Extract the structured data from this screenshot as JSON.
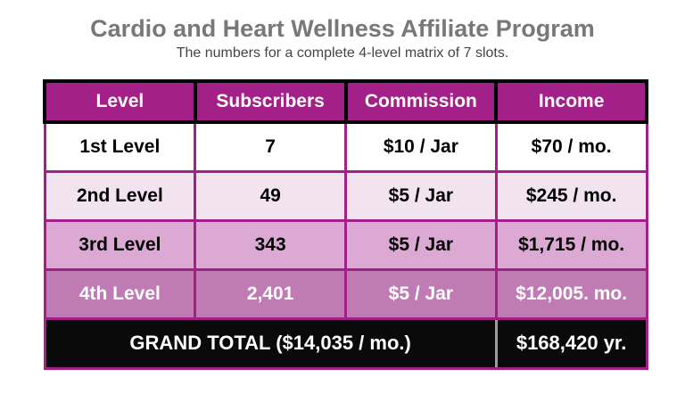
{
  "slide": {
    "title": "Cardio and Heart Wellness Affiliate Program",
    "subtitle": "The numbers for a complete 4-level matrix of 7 slots."
  },
  "table": {
    "headers": [
      "Level",
      "Subscribers",
      "Commission",
      "Income"
    ],
    "rows": [
      {
        "level": "1st Level",
        "subscribers": "7",
        "commission": "$10 / Jar",
        "income": "$70 / mo."
      },
      {
        "level": "2nd Level",
        "subscribers": "49",
        "commission": "$5 / Jar",
        "income": "$245 / mo."
      },
      {
        "level": "3rd Level",
        "subscribers": "343",
        "commission": "$5 / Jar",
        "income": "$1,715 / mo."
      },
      {
        "level": "4th Level",
        "subscribers": "2,401",
        "commission": "$5 / Jar",
        "income": "$12,005. mo."
      }
    ],
    "grand_total": {
      "label": "GRAND TOTAL ($14,035 / mo.)",
      "value": "$168,420 yr."
    }
  },
  "colors": {
    "header_bg": "#a22087",
    "border_magenta": "#a22087",
    "row1_bg": "#ffffff",
    "row2_bg": "#f2e3f0",
    "row3_bg": "#dba9d4",
    "row4_bg": "#c07ab4",
    "total_bg": "#0a0a0a",
    "total_divider": "#9b9b9b",
    "title_text": "#77787b",
    "subtitle_text": "#454547",
    "header_outline": "#000000"
  }
}
